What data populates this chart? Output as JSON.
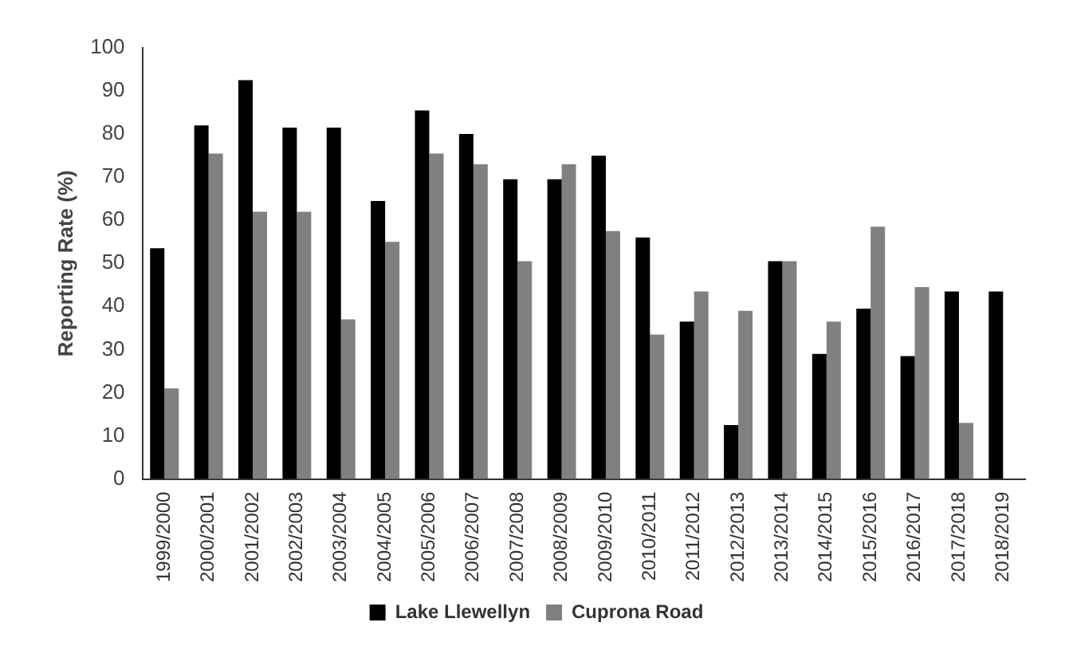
{
  "chart_data": {
    "type": "bar",
    "ylabel": "Reporting Rate (%)",
    "categories": [
      "1999/2000",
      "2000/2001",
      "2001/2002",
      "2002/2003",
      "2003/2004",
      "2004/2005",
      "2005/2006",
      "2006/2007",
      "2007/2008",
      "2008/2009",
      "2009/2010",
      "2010/2011",
      "2011/2012",
      "2012/2013",
      "2013/2014",
      "2014/2015",
      "2015/2016",
      "2016/2017",
      "2017/2018",
      "2018/2019"
    ],
    "series": [
      {
        "name": "Lake Llewellyn",
        "color": "#000000",
        "values": [
          53.5,
          82,
          92.5,
          81.5,
          81.5,
          64.5,
          85.5,
          80,
          69.5,
          69.5,
          75,
          56,
          36.5,
          12.5,
          50.5,
          29,
          39.5,
          28.5,
          43.5,
          43.5
        ]
      },
      {
        "name": "Cuprona Road",
        "color": "#808080",
        "values": [
          21,
          75.5,
          62,
          62,
          37,
          55,
          75.5,
          73,
          50.5,
          73,
          57.5,
          33.5,
          43.5,
          39,
          50.5,
          36.5,
          58.5,
          44.5,
          13,
          null
        ]
      }
    ],
    "ylim": [
      0,
      100
    ],
    "yticks": [
      0,
      10,
      20,
      30,
      40,
      50,
      60,
      70,
      80,
      90,
      100
    ],
    "grid": false,
    "legend": "bottom"
  }
}
